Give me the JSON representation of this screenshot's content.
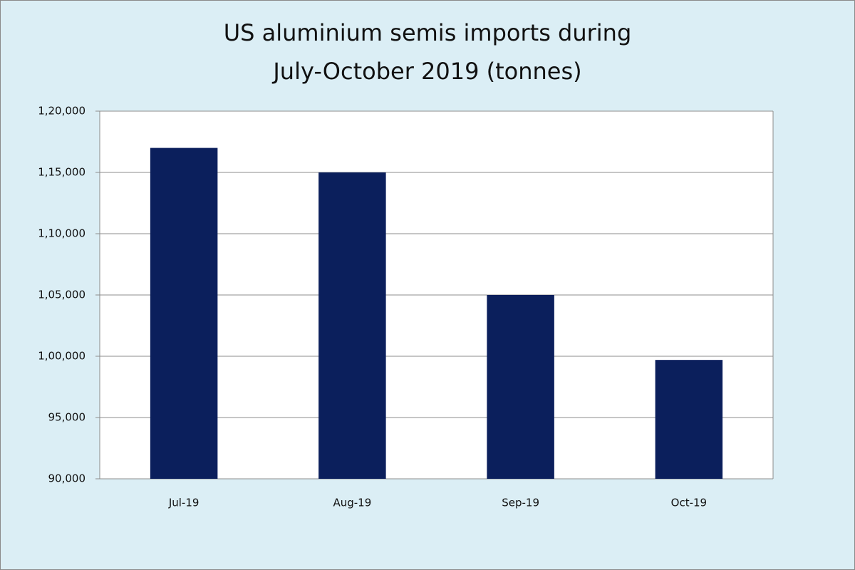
{
  "chart_data": {
    "type": "bar",
    "title": [
      "US aluminium semis imports during",
      "July-October 2019 (tonnes)"
    ],
    "categories": [
      "Jul-19",
      "Aug-19",
      "Sep-19",
      "Oct-19"
    ],
    "values": [
      117000,
      115000,
      105000,
      99700
    ],
    "color": "#0b1f5c",
    "ylim": [
      90000,
      120000
    ],
    "yticks": [
      {
        "value": 90000,
        "label": "90,000"
      },
      {
        "value": 95000,
        "label": "95,000"
      },
      {
        "value": 100000,
        "label": "1,00,000"
      },
      {
        "value": 105000,
        "label": "1,05,000"
      },
      {
        "value": 110000,
        "label": "1,10,000"
      },
      {
        "value": 115000,
        "label": "1,15,000"
      },
      {
        "value": 120000,
        "label": "1,20,000"
      }
    ],
    "grid": true
  }
}
